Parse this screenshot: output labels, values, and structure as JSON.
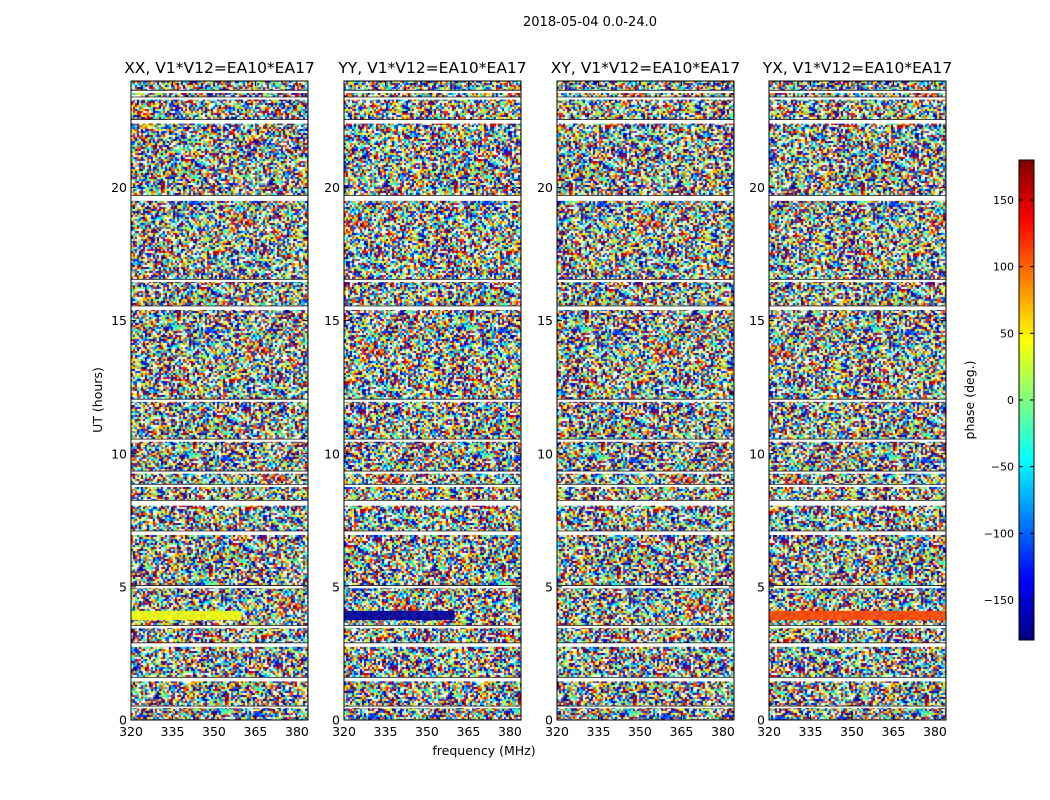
{
  "chart_data": {
    "type": "heatmap",
    "suptitle": "2018-05-04 0.0-24.0",
    "xlabel": "frequency (MHz)",
    "ylabel": "UT (hours)",
    "xlim": [
      320,
      384
    ],
    "ylim": [
      0,
      24
    ],
    "x_ticks": [
      "320",
      "335",
      "350",
      "365",
      "380"
    ],
    "x_tick_values": [
      320,
      335,
      350,
      365,
      380
    ],
    "y_ticks": [
      "0",
      "5",
      "10",
      "15",
      "20"
    ],
    "y_tick_values": [
      0,
      5,
      10,
      15,
      20
    ],
    "colorbar": {
      "label": "phase (deg.)",
      "range": [
        -180,
        180
      ],
      "ticks": [
        "150",
        "100",
        "50",
        "0",
        "−50",
        "−100",
        "−150"
      ],
      "tick_values": [
        150,
        100,
        50,
        0,
        -50,
        -100,
        -150
      ],
      "colormap": [
        "#00007f",
        "#0000ff",
        "#007fff",
        "#00ffff",
        "#7fff7f",
        "#ffff00",
        "#ff7f00",
        "#ff0000",
        "#7f0000"
      ]
    },
    "panels": [
      {
        "title": "XX, V1*V12=EA10*EA17",
        "feature": {
          "ut": [
            3.75,
            4.1
          ],
          "freq": [
            320,
            360
          ],
          "phase": 40
        }
      },
      {
        "title": "YY, V1*V12=EA10*EA17",
        "feature": {
          "ut": [
            3.75,
            4.1
          ],
          "freq": [
            320,
            360
          ],
          "phase": -170
        }
      },
      {
        "title": "XY, V1*V12=EA10*EA17",
        "feature": null
      },
      {
        "title": "YX, V1*V12=EA10*EA17",
        "feature": {
          "ut": [
            3.75,
            4.1
          ],
          "freq": [
            320,
            384
          ],
          "phase": 110
        }
      }
    ],
    "flagged_ut_bands": [
      [
        0.45,
        0.52
      ],
      [
        1.45,
        1.6
      ],
      [
        2.75,
        2.9
      ],
      [
        3.45,
        3.55
      ],
      [
        4.95,
        5.05
      ],
      [
        6.95,
        7.1
      ],
      [
        8.05,
        8.25
      ],
      [
        8.75,
        8.85
      ],
      [
        9.25,
        9.35
      ],
      [
        10.45,
        10.55
      ],
      [
        11.95,
        12.05
      ],
      [
        15.4,
        15.55
      ],
      [
        16.45,
        16.55
      ],
      [
        19.5,
        19.7
      ],
      [
        22.4,
        22.55
      ],
      [
        23.3,
        23.4
      ],
      [
        23.55,
        23.65
      ]
    ]
  }
}
